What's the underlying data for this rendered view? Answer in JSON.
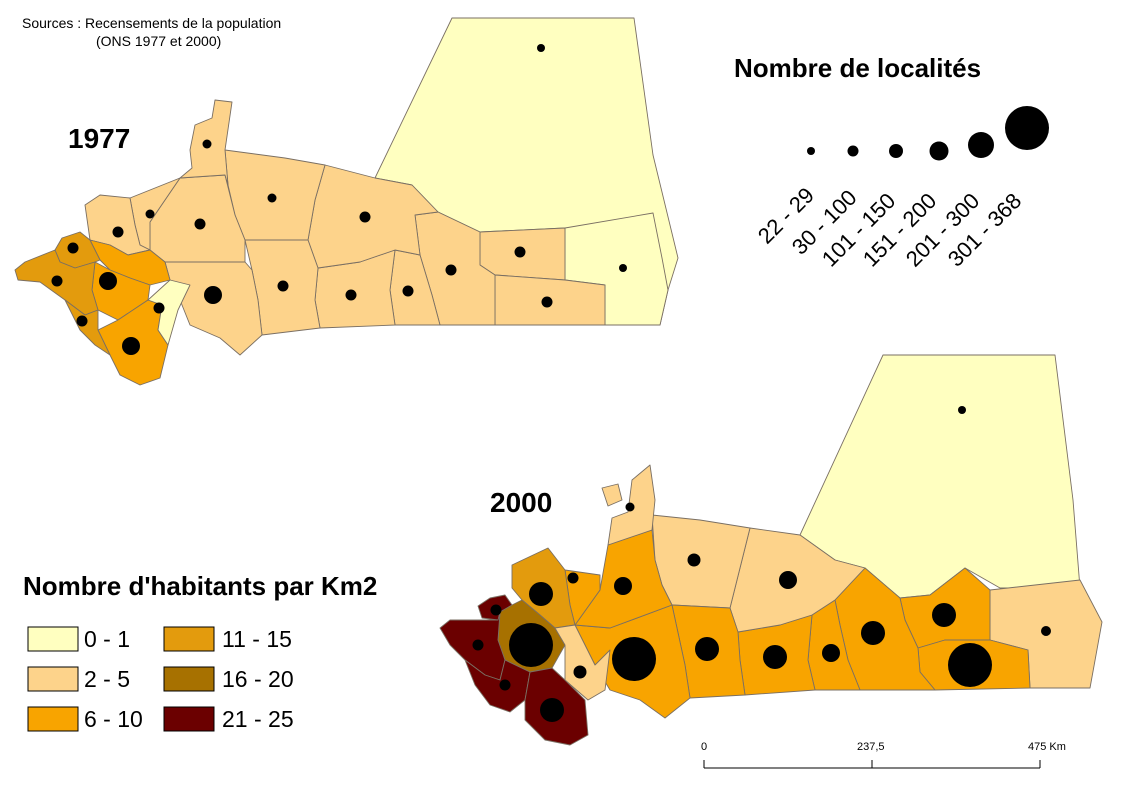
{
  "source": {
    "line1": "Sources : Recensements de la population",
    "line2": "(ONS 1977 et 2000)"
  },
  "map1977": {
    "title": "1977"
  },
  "map2000": {
    "title": "2000"
  },
  "localities_legend": {
    "title": "Nombre de localités",
    "classes": [
      "22 - 29",
      "30 - 100",
      "101 - 150",
      "151 - 200",
      "201 - 300",
      "301 - 368"
    ]
  },
  "density_legend": {
    "title": "Nombre d'habitants par Km2",
    "classes": [
      {
        "label": "0 - 1",
        "color": "#FFFFC0"
      },
      {
        "label": "2 - 5",
        "color": "#FDD38B"
      },
      {
        "label": "6 - 10",
        "color": "#F8A400"
      },
      {
        "label": "11 - 15",
        "color": "#E39B0D"
      },
      {
        "label": "16 - 20",
        "color": "#A77100"
      },
      {
        "label": "21 - 25",
        "color": "#6B0000"
      }
    ]
  },
  "scale_bar": {
    "ticks": [
      "0",
      "237,5",
      "475 Km"
    ]
  }
}
